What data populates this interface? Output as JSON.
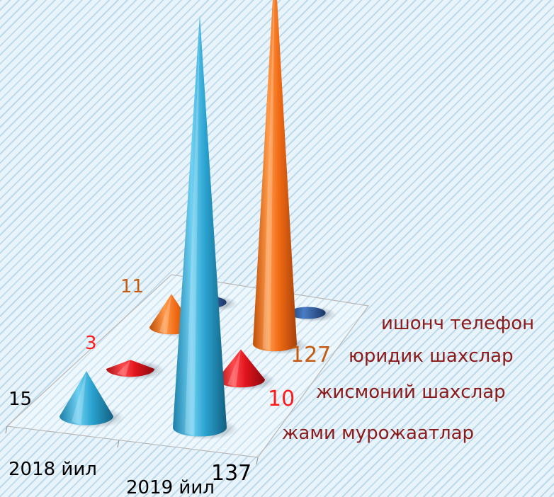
{
  "chart_data": {
    "type": "3d-cone",
    "categories": [
      "2018 йил",
      "2019 йил"
    ],
    "series": [
      {
        "name": "жами мурожаатлар",
        "values": [
          15,
          137
        ],
        "color": "#2aa3d0",
        "label_color": "#000000"
      },
      {
        "name": "жисмоний шахслар",
        "values": [
          3,
          10
        ],
        "color": "#e0141c",
        "label_color": "#ff1a1a"
      },
      {
        "name": "юридик шахслар",
        "values": [
          11,
          127
        ],
        "color": "#f06a14",
        "label_color": "#c55a11"
      },
      {
        "name": "ишонч телефон",
        "values": [
          0,
          0
        ],
        "color": "#2f5fa6",
        "label_color": "#000000"
      }
    ],
    "series_label_color": "#8b1a1a",
    "grid": false,
    "legend": "none"
  }
}
